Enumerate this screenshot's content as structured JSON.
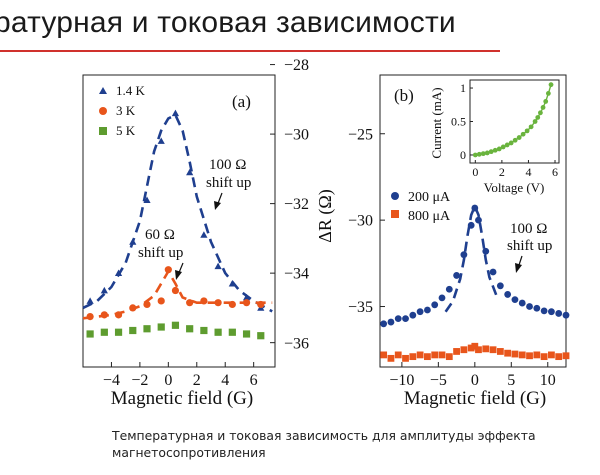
{
  "slide": {
    "title": "ратурная и токовая зависимости",
    "caption": "Температурная и токовая зависимость для амплитуды эффекта магнетосопротивления",
    "accent_color": "#d0312d"
  },
  "chart_data": [
    {
      "type": "scatter",
      "panel_label": "(a)",
      "xlabel": "Magnetic field (G)",
      "ylabel": "",
      "xlim": [
        -6,
        7.5
      ],
      "ylim": [
        -36.7,
        -28.3
      ],
      "x_ticks": [
        -4,
        -2,
        0,
        2,
        4,
        6
      ],
      "x_tick_labels": [
        "−4",
        "−2",
        "0",
        "2",
        "4",
        "6"
      ],
      "y_ticks": [
        -28,
        -30,
        -32,
        -34,
        -36
      ],
      "y_tick_labels": [
        "−28",
        "−30",
        "−32",
        "−34",
        "−36"
      ],
      "y_axis_side": "right",
      "legend_placement": "top-left",
      "grid": false,
      "annotations": [
        {
          "lines": [
            "100 Ω",
            "shift up"
          ]
        },
        {
          "lines": [
            "60 Ω",
            "shift up"
          ]
        }
      ],
      "series": [
        {
          "name": "1.4 K",
          "marker": "triangle",
          "color": "#1f3f8f",
          "x": [
            -5.5,
            -4.5,
            -3.5,
            -2.5,
            -1.5,
            -0.5,
            0.5,
            1.5,
            2.5,
            3.5,
            4.5,
            5.5,
            6.5
          ],
          "y": [
            -34.8,
            -34.5,
            -34.0,
            -33.1,
            -31.9,
            -30.2,
            -29.4,
            -31.1,
            -32.9,
            -33.8,
            -34.3,
            -34.7,
            -35.0
          ]
        },
        {
          "name": "3 K",
          "marker": "circle",
          "color": "#e8551b",
          "x": [
            -5.5,
            -4.5,
            -3.5,
            -2.5,
            -1.5,
            -0.5,
            0.0,
            0.5,
            1.5,
            2.5,
            3.5,
            4.5,
            5.5,
            6.5
          ],
          "y": [
            -35.25,
            -35.2,
            -35.2,
            -35.0,
            -34.9,
            -34.8,
            -33.9,
            -34.5,
            -34.85,
            -34.8,
            -34.85,
            -34.9,
            -34.85,
            -34.9
          ]
        },
        {
          "name": "5 K",
          "marker": "square",
          "color": "#5e9c2f",
          "x": [
            -5.5,
            -4.5,
            -3.5,
            -2.5,
            -1.5,
            -0.5,
            0.5,
            1.5,
            2.5,
            3.5,
            4.5,
            5.5,
            6.5
          ],
          "y": [
            -35.75,
            -35.7,
            -35.7,
            -35.65,
            -35.6,
            -35.55,
            -35.5,
            -35.6,
            -35.65,
            -35.7,
            -35.7,
            -35.75,
            -35.8
          ]
        }
      ],
      "fits": [
        {
          "color": "#1f3f8f",
          "style": "dashed",
          "x": [
            -6,
            -5,
            -4,
            -3,
            -2,
            -1.5,
            -1,
            -0.5,
            0,
            0.5,
            1,
            1.5,
            2,
            3,
            4,
            5,
            6,
            7.3
          ],
          "y": [
            -35.0,
            -34.8,
            -34.4,
            -33.7,
            -32.5,
            -31.5,
            -30.5,
            -29.9,
            -29.55,
            -29.45,
            -29.9,
            -30.8,
            -31.8,
            -33.1,
            -34.0,
            -34.5,
            -34.8,
            -35.1
          ]
        },
        {
          "color": "#e8551b",
          "style": "dashed",
          "x": [
            -6,
            -5,
            -4,
            -3,
            -2,
            -1,
            -0.5,
            0,
            0.5,
            1,
            2,
            3,
            4,
            5,
            6,
            7.3
          ],
          "y": [
            -35.3,
            -35.25,
            -35.2,
            -35.1,
            -34.95,
            -34.65,
            -34.3,
            -33.95,
            -34.3,
            -34.7,
            -34.85,
            -34.85,
            -34.85,
            -34.85,
            -34.85,
            -34.85
          ]
        }
      ]
    },
    {
      "type": "scatter",
      "panel_label": "(b)",
      "xlabel": "Magnetic field (G)",
      "ylabel": "ΔR (Ω)",
      "xlim": [
        -13,
        12.5
      ],
      "ylim": [
        -38.5,
        -21.6
      ],
      "x_ticks": [
        -10,
        -5,
        0,
        5,
        10
      ],
      "x_tick_labels": [
        "−10",
        "−5",
        "0",
        "5",
        "10"
      ],
      "y_ticks": [
        -25,
        -30,
        -35
      ],
      "y_tick_labels": [
        "−25",
        "−30",
        "−35"
      ],
      "y_axis_side": "left",
      "legend_placement": "center-left",
      "grid": false,
      "annotations": [
        {
          "lines": [
            "100 Ω",
            "shift up"
          ]
        }
      ],
      "series": [
        {
          "name": "200 μA",
          "marker": "circle",
          "color": "#1f3f8f",
          "x": [
            -12.5,
            -11.5,
            -10.5,
            -9.5,
            -8.5,
            -7.5,
            -6.5,
            -5.5,
            -4.5,
            -3.5,
            -2.5,
            -1.5,
            -0.5,
            0.0,
            0.5,
            1.5,
            2.5,
            3.5,
            4.5,
            5.5,
            6.5,
            7.5,
            8.5,
            9.5,
            10.5,
            11.5,
            12.5
          ],
          "y": [
            -36.0,
            -35.9,
            -35.7,
            -35.7,
            -35.5,
            -35.3,
            -35.2,
            -34.9,
            -34.5,
            -34.0,
            -33.2,
            -32.0,
            -30.3,
            -29.3,
            -30.0,
            -31.8,
            -33.0,
            -33.8,
            -34.3,
            -34.6,
            -34.8,
            -35.0,
            -35.1,
            -35.25,
            -35.3,
            -35.4,
            -35.5
          ],
          "fit": {
            "color": "#1f3f8f",
            "style": "dashed",
            "x": [
              -4,
              -3,
              -2,
              -1.5,
              -1,
              -0.5,
              0,
              0.5,
              1,
              1.5,
              2,
              3
            ],
            "y": [
              -35.3,
              -34.7,
              -33.4,
              -32.3,
              -30.9,
              -29.7,
              -29.2,
              -29.7,
              -30.9,
              -32.3,
              -33.3,
              -34.4
            ]
          }
        },
        {
          "name": "800 μA",
          "marker": "square",
          "color": "#e8551b",
          "x": [
            -12.5,
            -11.5,
            -10.5,
            -9.5,
            -8.5,
            -7.5,
            -6.5,
            -5.5,
            -4.5,
            -3.5,
            -2.5,
            -1.5,
            -0.5,
            0.0,
            0.5,
            1.5,
            2.5,
            3.5,
            4.5,
            5.5,
            6.5,
            7.5,
            8.5,
            9.5,
            10.5,
            11.5,
            12.5
          ],
          "y": [
            -37.8,
            -38.0,
            -37.8,
            -38.0,
            -37.9,
            -37.8,
            -37.9,
            -37.8,
            -37.8,
            -37.9,
            -37.6,
            -37.5,
            -37.4,
            -37.3,
            -37.5,
            -37.45,
            -37.5,
            -37.6,
            -37.7,
            -37.75,
            -37.8,
            -37.85,
            -37.8,
            -37.9,
            -37.8,
            -37.9,
            -37.85
          ]
        }
      ],
      "inset": {
        "type": "line",
        "xlabel": "Voltage (V)",
        "ylabel": "Current (mA)",
        "xlim": [
          -0.4,
          6.3
        ],
        "ylim": [
          -0.12,
          1.12
        ],
        "x_ticks": [
          0,
          2,
          4,
          6
        ],
        "x_tick_labels": [
          "0",
          "2",
          "4",
          "6"
        ],
        "y_ticks": [
          0,
          0.5,
          1
        ],
        "y_tick_labels": [
          "0",
          "0.5",
          "1"
        ],
        "series": [
          {
            "name": "",
            "marker": "circle",
            "color": "#6ab43e",
            "x": [
              0.0,
              0.3,
              0.6,
              0.9,
              1.2,
              1.5,
              1.8,
              2.1,
              2.4,
              2.7,
              3.0,
              3.3,
              3.6,
              3.9,
              4.2,
              4.5,
              4.7,
              4.9,
              5.1,
              5.3,
              5.5,
              5.7
            ],
            "y": [
              0.0,
              0.01,
              0.02,
              0.03,
              0.05,
              0.07,
              0.09,
              0.12,
              0.15,
              0.18,
              0.22,
              0.26,
              0.31,
              0.36,
              0.42,
              0.5,
              0.56,
              0.63,
              0.71,
              0.8,
              0.92,
              1.05
            ]
          }
        ]
      }
    }
  ]
}
